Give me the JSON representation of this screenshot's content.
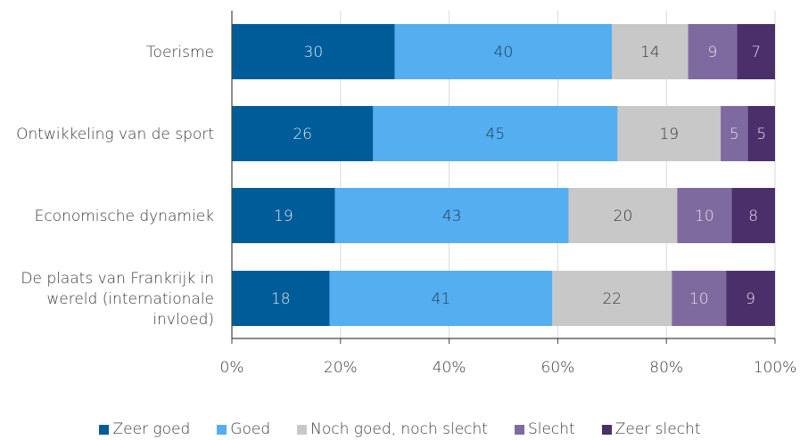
{
  "chart_data": {
    "type": "bar",
    "orientation": "horizontal",
    "stacked": true,
    "percent": true,
    "categories": [
      "Toerisme",
      "Ontwikkeling van de sport",
      "Economische dynamiek",
      "De plaats van Frankrijk in wereld (internationale invloed)"
    ],
    "category_lines": [
      [
        "Toerisme"
      ],
      [
        "Ontwikkeling van de sport"
      ],
      [
        "Economische dynamiek"
      ],
      [
        "De plaats van Frankrijk in",
        "wereld (internationale",
        "invloed)"
      ]
    ],
    "series": [
      {
        "name": "Zeer goed",
        "color": "#005c99",
        "label_color": "#dbe8f2",
        "values": [
          30,
          26,
          19,
          18
        ]
      },
      {
        "name": "Goed",
        "color": "#54aef0",
        "label_color": "#1f3a52",
        "values": [
          40,
          45,
          43,
          41
        ]
      },
      {
        "name": "Noch goed, noch slecht",
        "color": "#c8c8c8",
        "label_color": "#333333",
        "values": [
          14,
          19,
          20,
          22
        ]
      },
      {
        "name": "Slecht",
        "color": "#7f6aa0",
        "label_color": "#e6e0ef",
        "values": [
          9,
          5,
          10,
          10
        ]
      },
      {
        "name": "Zeer slecht",
        "color": "#4a2f6a",
        "label_color": "#e6e0ef",
        "values": [
          7,
          5,
          8,
          9
        ]
      }
    ],
    "xticks": [
      "0%",
      "20%",
      "40%",
      "60%",
      "80%",
      "100%"
    ],
    "xlim": [
      0,
      100
    ],
    "grid": true,
    "legend_position": "bottom"
  }
}
